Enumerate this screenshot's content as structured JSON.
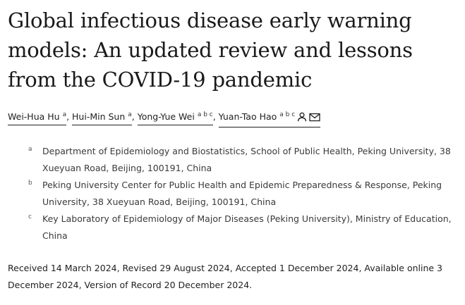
{
  "article": {
    "title": "Global infectious disease early warning models: An updated review and lessons from the COVID-19 pandemic"
  },
  "authors": [
    {
      "name": "Wei-Hua Hu",
      "affiliations": "a"
    },
    {
      "name": "Hui-Min Sun",
      "affiliations": "a"
    },
    {
      "name": "Yong-Yue Wei",
      "affiliations": "a b c"
    },
    {
      "name": "Yuan-Tao Hao",
      "affiliations": "a b c"
    }
  ],
  "corresponding_icons": [
    "person-icon",
    "envelope-icon"
  ],
  "affiliations": [
    {
      "mark": "a",
      "text": "Department of Epidemiology and Biostatistics, School of Public Health, Peking University, 38 Xueyuan Road, Beijing, 100191, China"
    },
    {
      "mark": "b",
      "text": "Peking University Center for Public Health and Epidemic Preparedness & Response, Peking University, 38 Xueyuan Road, Beijing, 100191, China"
    },
    {
      "mark": "c",
      "text": "Key Laboratory of Epidemiology of Major Diseases (Peking University), Ministry of Education, China"
    }
  ],
  "dates": {
    "text": "Received 14 March 2024, Revised 29 August 2024, Accepted 1 December 2024, Available online 3 December 2024, Version of Record 20 December 2024."
  }
}
